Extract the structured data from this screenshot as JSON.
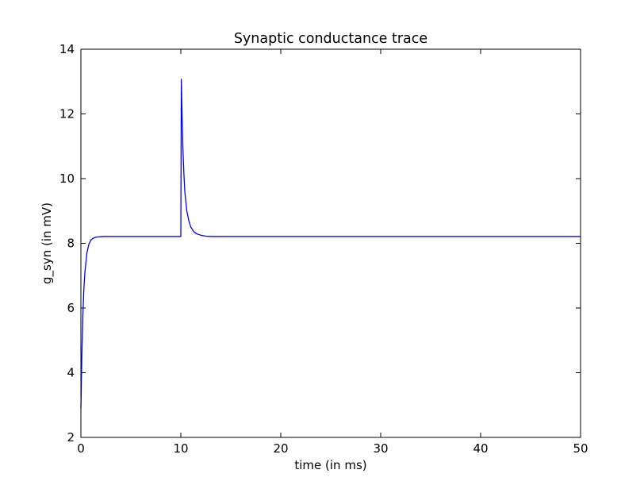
{
  "chart_data": {
    "type": "line",
    "title": "Synaptic conductance trace",
    "xlabel": "time (in ms)",
    "ylabel": "g_syn (in mV)",
    "xlim": [
      0,
      50
    ],
    "ylim": [
      2,
      14
    ],
    "xticks": [
      0,
      10,
      20,
      30,
      40,
      50
    ],
    "yticks": [
      2,
      4,
      6,
      8,
      10,
      12,
      14
    ],
    "grid": false,
    "series": [
      {
        "color": "#0000ff",
        "x": [
          0,
          0.1,
          0.2,
          0.3,
          0.4,
          0.6,
          0.8,
          1.0,
          1.2,
          1.5,
          1.8,
          2.2,
          2.6,
          3.0,
          4.0,
          6.0,
          8.0,
          9.9,
          10.0,
          10.05,
          10.1,
          10.2,
          10.3,
          10.4,
          10.6,
          10.8,
          11.0,
          11.3,
          11.6,
          12.0,
          12.5,
          13.0,
          14.0,
          16.0,
          20.0,
          30.0,
          40.0,
          50.0
        ],
        "values": [
          2.9,
          4.6,
          5.8,
          6.6,
          7.1,
          7.7,
          7.97,
          8.1,
          8.15,
          8.19,
          8.2,
          8.21,
          8.21,
          8.21,
          8.21,
          8.21,
          8.21,
          8.21,
          8.21,
          13.07,
          12.3,
          11.0,
          10.2,
          9.6,
          9.0,
          8.7,
          8.5,
          8.36,
          8.29,
          8.25,
          8.22,
          8.21,
          8.21,
          8.21,
          8.21,
          8.21,
          8.21,
          8.21
        ]
      }
    ]
  }
}
